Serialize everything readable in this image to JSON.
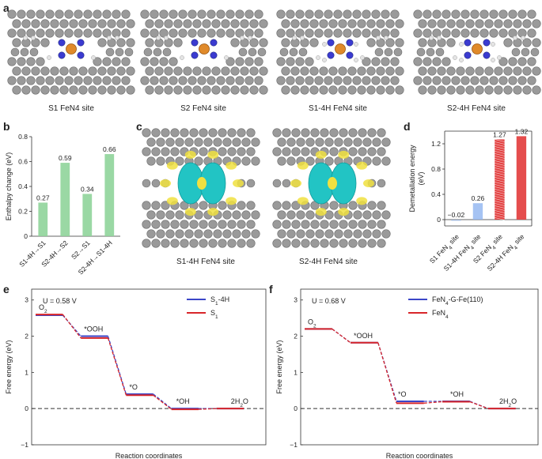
{
  "panels": {
    "a": {
      "label": "a",
      "captions": [
        "S1 FeN4 site",
        "S2 FeN4 site",
        "S1-4H FeN4 site",
        "S2-4H FeN4 site"
      ]
    },
    "c": {
      "label": "c",
      "captions": [
        "S1-4H FeN4 site",
        "S2-4H FeN4 site"
      ]
    }
  },
  "colors": {
    "carbon": "#9a9a9a",
    "nitrogen": "#3b3bd0",
    "iron": "#e08a2a",
    "hydrogen": "#e4e4e4",
    "charge_cyan": "#22c4c4",
    "charge_yellow": "#f0e040",
    "bar_green": "#8fd49a",
    "bar_blue": "#8fb4f0",
    "bar_red": "#e23a3a",
    "line_blue": "#3b46c8",
    "line_red": "#d8262a"
  },
  "chart_data": [
    {
      "id": "b",
      "label": "b",
      "type": "bar",
      "categories": [
        "S1-4H→S1",
        "S2-4H→S2",
        "S2→S1",
        "S2-4H→S1-4H"
      ],
      "values": [
        0.27,
        0.59,
        0.34,
        0.66
      ],
      "value_labels": [
        "0.27",
        "0.59",
        "0.34",
        "0.66"
      ],
      "ylabel": "Enthalpy change (eV)",
      "ylim": [
        0,
        0.8
      ],
      "yticks": [
        "0",
        "0.2",
        "0.4",
        "0.6",
        "0.8"
      ]
    },
    {
      "id": "d",
      "label": "d",
      "type": "bar",
      "categories": [
        "S1 FeN4 site",
        "S1-4H FeN4 site",
        "S2 FeN4 site",
        "S2-4H FeN4 site"
      ],
      "values": [
        -0.02,
        0.26,
        1.27,
        1.32
      ],
      "value_labels": [
        "−0.02",
        "0.26",
        "1.27",
        "1.32"
      ],
      "ylabel": "Demetallation energy (eV)",
      "ylim": [
        -0.1,
        1.4
      ],
      "yticks": [
        "0",
        "0.4",
        "0.8",
        "1.2"
      ]
    },
    {
      "id": "e",
      "label": "e",
      "type": "line",
      "annotation": "U = 0.58 V",
      "steps": [
        "O2",
        "*OOH",
        "*O",
        "*OH",
        "2H2O"
      ],
      "series": [
        {
          "name": "S1-4H",
          "values": [
            2.58,
            2.0,
            0.4,
            0.0,
            0.0
          ]
        },
        {
          "name": "S1",
          "values": [
            2.6,
            1.95,
            0.37,
            -0.02,
            0.0
          ]
        }
      ],
      "xlabel": "Reaction coordinates",
      "ylabel": "Free energy (eV)",
      "ylim": [
        -1,
        3.3
      ],
      "yticks": [
        "−1",
        "0",
        "1",
        "2",
        "3"
      ]
    },
    {
      "id": "f",
      "label": "f",
      "type": "line",
      "annotation": "U = 0.68 V",
      "steps": [
        "O2",
        "*OOH",
        "*O",
        "*OH",
        "2H2O"
      ],
      "series": [
        {
          "name": "FeN4-G-Fe(110)",
          "values": [
            2.2,
            1.82,
            0.2,
            0.2,
            0.0
          ]
        },
        {
          "name": "FeN4",
          "values": [
            2.2,
            1.82,
            0.15,
            0.19,
            0.0
          ]
        }
      ],
      "xlabel": "Reaction coordinates",
      "ylabel": "Free energy (eV)",
      "ylim": [
        -1,
        3.3
      ],
      "yticks": [
        "−1",
        "0",
        "1",
        "2",
        "3"
      ]
    }
  ]
}
